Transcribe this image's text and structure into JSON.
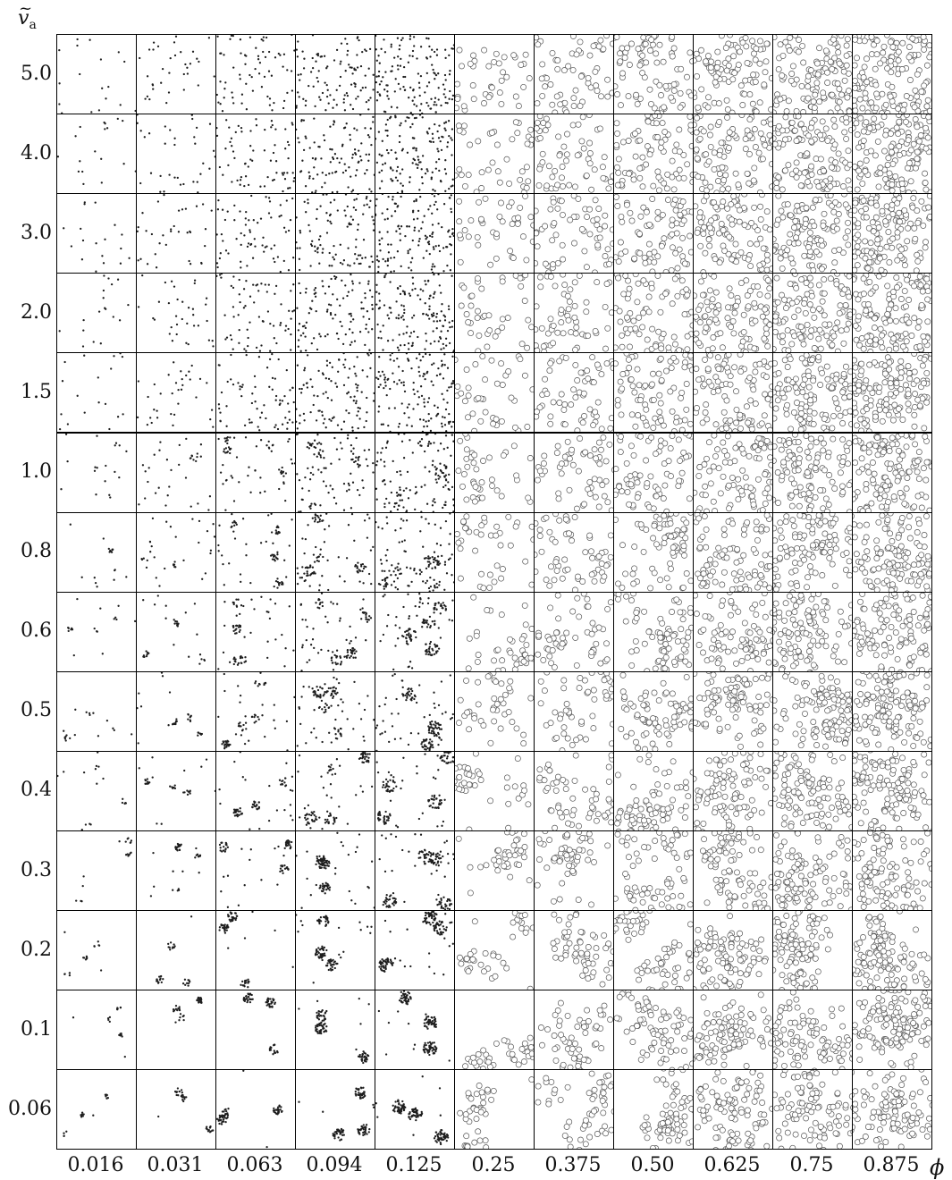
{
  "axes": {
    "y_title": "v",
    "y_title_accent": "~",
    "y_title_subscript": "a",
    "x_title": "ϕ"
  },
  "rows": [
    "5.0",
    "4.0",
    "3.0",
    "2.0",
    "1.5",
    "1.0",
    "0.8",
    "0.6",
    "0.5",
    "0.4",
    "0.3",
    "0.2",
    "0.1",
    "0.06"
  ],
  "columns": [
    "0.016",
    "0.031",
    "0.063",
    "0.094",
    "0.125",
    "0.25",
    "0.375",
    "0.50",
    "0.625",
    "0.75",
    "0.875"
  ],
  "colors": {
    "particle_small": "#1e1e1e",
    "particle_ring": "#555555",
    "panel_border": "#000000",
    "background": "#ffffff"
  }
}
